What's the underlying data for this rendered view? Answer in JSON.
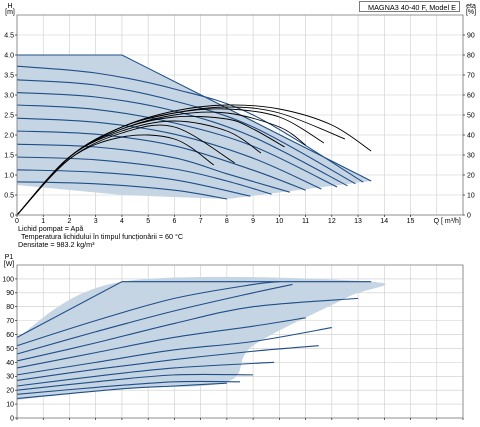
{
  "chart_data": [
    {
      "id": "head",
      "type": "line",
      "title": "",
      "ylabel_name": "H",
      "ylabel_unit": "[m]",
      "y2label_name": "eta",
      "y2label_unit": "[%]",
      "xlabel": "Q [ m³/h]",
      "model_label": "MAGNA3 40-40 F, Model E",
      "xlim": [
        0,
        17
      ],
      "ylim": [
        0,
        5
      ],
      "y2lim": [
        0,
        100
      ],
      "x_ticks": [
        "0",
        "1",
        "2",
        "3",
        "4",
        "5",
        "6",
        "7",
        "8",
        "9",
        "10",
        "11",
        "12",
        "13",
        "14",
        "15"
      ],
      "y_ticks": [
        "0",
        "0.5",
        "1.0",
        "1.5",
        "2.0",
        "2.5",
        "3.0",
        "3.5",
        "4.0",
        "4.5"
      ],
      "y2_ticks": [
        "0",
        "10",
        "20",
        "30",
        "40",
        "50",
        "60",
        "70",
        "80",
        "90"
      ],
      "grid": true,
      "colors": {
        "area": "#c6d5e3",
        "curve": "#1f4e88",
        "eta": "#000000",
        "grid": "#cccccc"
      },
      "operating_area": [
        [
          0,
          4.0
        ],
        [
          4,
          4.0
        ],
        [
          13.5,
          0.85
        ],
        [
          8,
          0.4
        ],
        [
          4,
          0.5
        ],
        [
          0,
          0.75
        ]
      ],
      "head_curves": [
        [
          [
            0,
            4.0
          ],
          [
            4,
            4.0
          ],
          [
            13.5,
            0.85
          ]
        ],
        [
          [
            0,
            3.72
          ],
          [
            3,
            3.55
          ],
          [
            6,
            3.15
          ],
          [
            9,
            2.5
          ],
          [
            13.2,
            0.82
          ]
        ],
        [
          [
            0,
            3.38
          ],
          [
            3,
            3.25
          ],
          [
            6,
            2.85
          ],
          [
            9,
            2.2
          ],
          [
            12.9,
            0.78
          ]
        ],
        [
          [
            0,
            3.06
          ],
          [
            3,
            2.95
          ],
          [
            6,
            2.6
          ],
          [
            9,
            1.95
          ],
          [
            12.6,
            0.73
          ]
        ],
        [
          [
            0,
            2.75
          ],
          [
            3,
            2.64
          ],
          [
            6,
            2.3
          ],
          [
            9,
            1.72
          ],
          [
            12.2,
            0.7
          ]
        ],
        [
          [
            0,
            2.42
          ],
          [
            3,
            2.32
          ],
          [
            6,
            2.02
          ],
          [
            9,
            1.42
          ],
          [
            11.6,
            0.65
          ]
        ],
        [
          [
            0,
            2.1
          ],
          [
            3,
            2.02
          ],
          [
            6,
            1.73
          ],
          [
            9,
            1.12
          ],
          [
            11.0,
            0.62
          ]
        ],
        [
          [
            0,
            1.77
          ],
          [
            3,
            1.7
          ],
          [
            6,
            1.43
          ],
          [
            8,
            1.03
          ],
          [
            10.4,
            0.57
          ]
        ],
        [
          [
            0,
            1.45
          ],
          [
            3,
            1.38
          ],
          [
            6,
            1.15
          ],
          [
            8,
            0.85
          ],
          [
            9.7,
            0.52
          ]
        ],
        [
          [
            0,
            1.13
          ],
          [
            3,
            1.07
          ],
          [
            6,
            0.88
          ],
          [
            8.9,
            0.47
          ]
        ],
        [
          [
            0,
            0.83
          ],
          [
            3,
            0.78
          ],
          [
            6,
            0.62
          ],
          [
            8,
            0.4
          ]
        ]
      ],
      "eta_curves": [
        [
          [
            0,
            0
          ],
          [
            2,
            29
          ],
          [
            4,
            44
          ],
          [
            6,
            52
          ],
          [
            8,
            55
          ],
          [
            10,
            53
          ],
          [
            12,
            45
          ],
          [
            13.5,
            32
          ]
        ],
        [
          [
            0,
            0
          ],
          [
            2,
            29
          ],
          [
            4,
            44
          ],
          [
            6,
            51
          ],
          [
            8,
            54
          ],
          [
            10,
            51
          ],
          [
            12.5,
            38
          ]
        ],
        [
          [
            0,
            0
          ],
          [
            2,
            29
          ],
          [
            4,
            44
          ],
          [
            6,
            51
          ],
          [
            8,
            53
          ],
          [
            10,
            49
          ],
          [
            11.7,
            36
          ]
        ],
        [
          [
            0,
            0
          ],
          [
            2,
            29
          ],
          [
            4,
            43
          ],
          [
            6,
            50
          ],
          [
            8,
            51
          ],
          [
            10,
            44
          ],
          [
            11.0,
            35
          ]
        ],
        [
          [
            0,
            0
          ],
          [
            2,
            29
          ],
          [
            4,
            43
          ],
          [
            6,
            49
          ],
          [
            8,
            48
          ],
          [
            9,
            43
          ],
          [
            10.2,
            34
          ]
        ],
        [
          [
            0,
            0
          ],
          [
            2,
            29
          ],
          [
            4,
            42
          ],
          [
            6,
            47
          ],
          [
            8,
            42
          ],
          [
            9.3,
            31
          ]
        ],
        [
          [
            0,
            0
          ],
          [
            2,
            28
          ],
          [
            4,
            41
          ],
          [
            6,
            44
          ],
          [
            8.3,
            26
          ]
        ],
        [
          [
            0,
            0
          ],
          [
            2,
            28
          ],
          [
            4,
            39
          ],
          [
            6,
            38
          ],
          [
            7.5,
            25
          ]
        ]
      ]
    },
    {
      "id": "power",
      "type": "line",
      "title": "",
      "ylabel_name": "P1",
      "ylabel_unit": "[W]",
      "xlim": [
        0,
        17
      ],
      "ylim": [
        0,
        110
      ],
      "y_ticks": [
        "0",
        "10",
        "20",
        "30",
        "40",
        "50",
        "60",
        "70",
        "80",
        "90",
        "100"
      ],
      "grid": true,
      "colors": {
        "area": "#c6d5e3",
        "curve": "#1f4e88",
        "grid": "#cccccc"
      },
      "operating_area": [
        [
          0,
          58
        ],
        [
          4,
          98
        ],
        [
          13.5,
          98
        ],
        [
          12.5,
          86
        ],
        [
          9,
          52
        ],
        [
          8,
          26
        ],
        [
          4,
          21
        ],
        [
          0,
          13
        ]
      ],
      "power_curves": [
        [
          [
            0,
            58
          ],
          [
            4,
            98
          ],
          [
            13.5,
            98
          ]
        ],
        [
          [
            0,
            52
          ],
          [
            3,
            70
          ],
          [
            6,
            86
          ],
          [
            9,
            96
          ],
          [
            10,
            98
          ]
        ],
        [
          [
            0,
            46
          ],
          [
            3,
            62
          ],
          [
            6,
            77
          ],
          [
            9,
            90
          ],
          [
            10.5,
            96
          ]
        ],
        [
          [
            0,
            41
          ],
          [
            3,
            54
          ],
          [
            6,
            68
          ],
          [
            9,
            80
          ],
          [
            13.0,
            86
          ]
        ],
        [
          [
            0,
            36
          ],
          [
            3,
            47
          ],
          [
            6,
            58
          ],
          [
            9,
            66
          ],
          [
            11.0,
            72
          ]
        ],
        [
          [
            0,
            31
          ],
          [
            3,
            40
          ],
          [
            6,
            49
          ],
          [
            9,
            55
          ],
          [
            12.0,
            65
          ]
        ],
        [
          [
            0,
            27
          ],
          [
            3,
            35
          ],
          [
            6,
            42
          ],
          [
            9,
            48
          ],
          [
            11.5,
            52
          ]
        ],
        [
          [
            0,
            23
          ],
          [
            3,
            30
          ],
          [
            6,
            36
          ],
          [
            9.8,
            40
          ]
        ],
        [
          [
            0,
            20
          ],
          [
            3,
            26
          ],
          [
            6,
            31
          ],
          [
            9.0,
            31
          ]
        ],
        [
          [
            0,
            17
          ],
          [
            3,
            22
          ],
          [
            6,
            26
          ],
          [
            8.5,
            26
          ]
        ],
        [
          [
            0,
            14
          ],
          [
            4,
            21
          ],
          [
            6,
            23
          ],
          [
            8,
            25
          ]
        ]
      ]
    }
  ],
  "fluid_info": {
    "liquid": "Lichid pompat = Apă",
    "temperature": "Temperatura lichidului în timpul funcționării = 60 °C",
    "density": "Densitate = 983.2  kg/m³"
  }
}
